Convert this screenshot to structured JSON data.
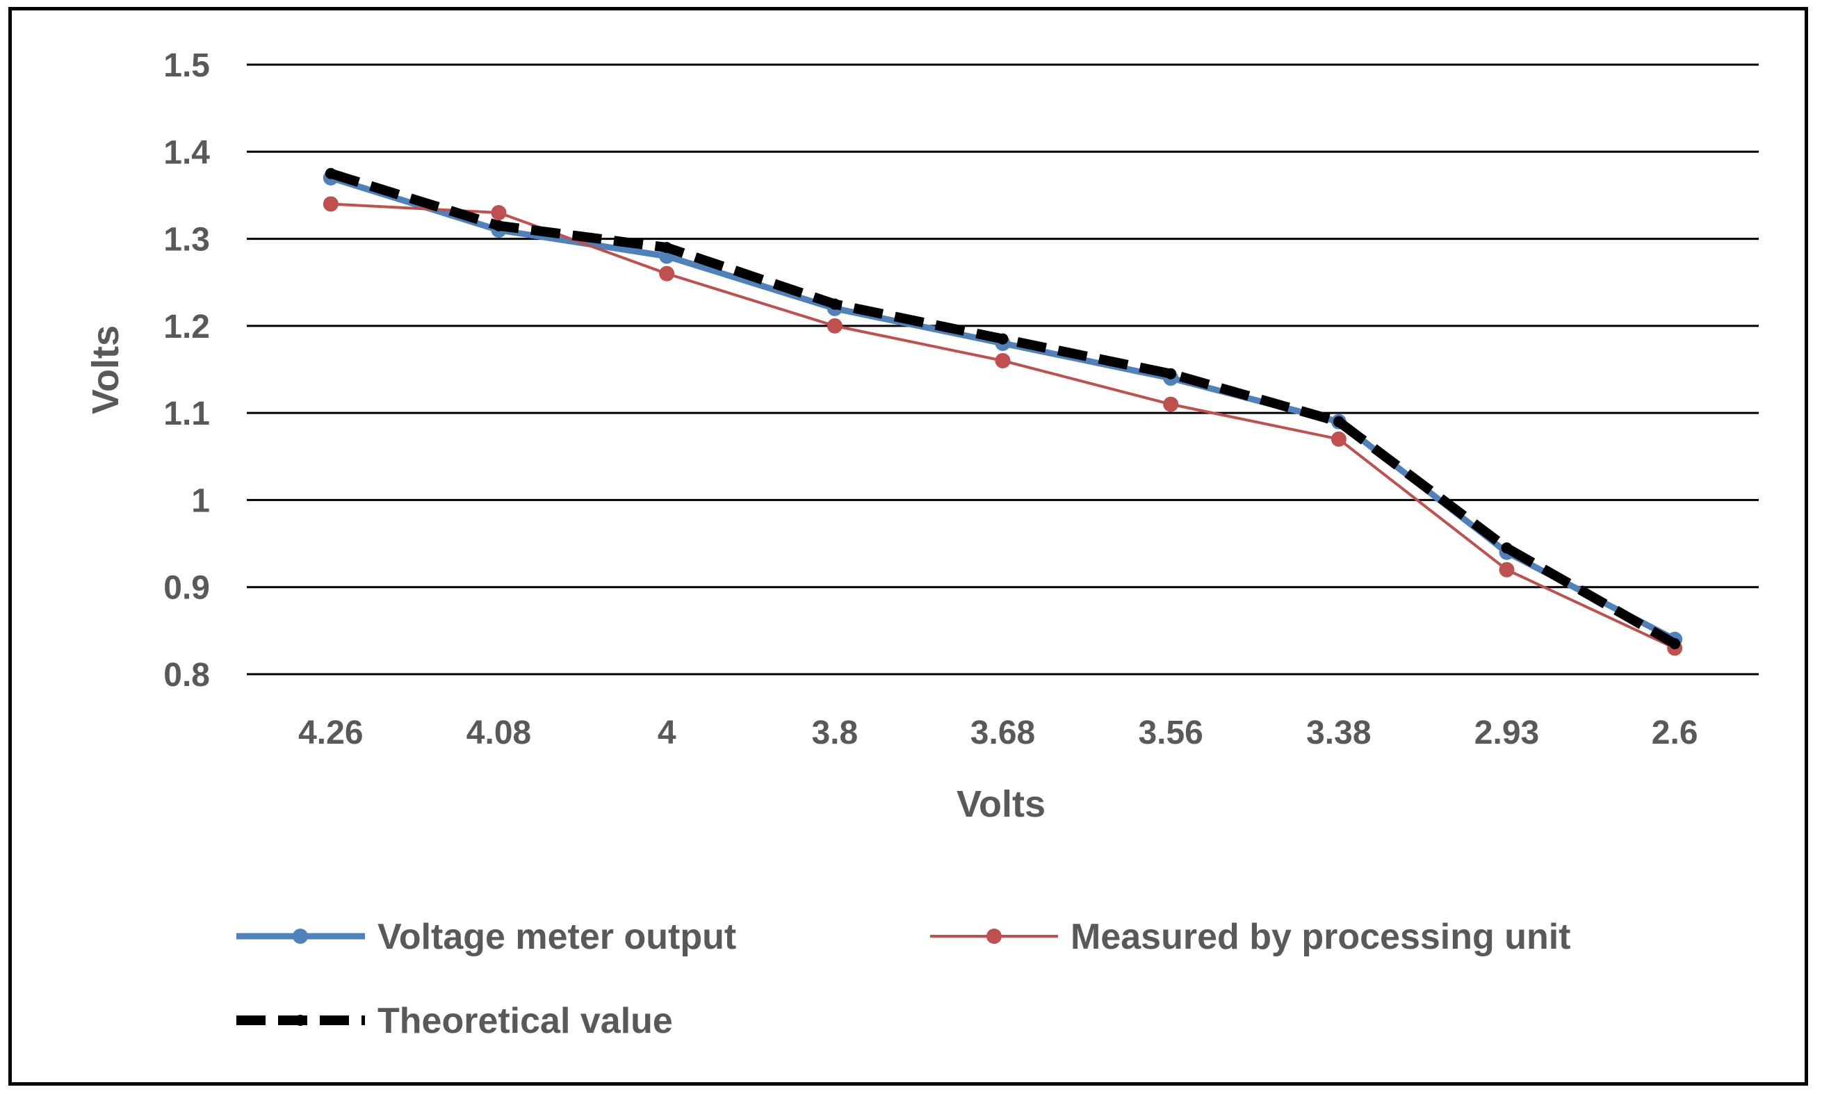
{
  "chart_data": {
    "type": "line",
    "title": "",
    "xlabel": "Volts",
    "ylabel": "Volts",
    "categories": [
      "4.26",
      "4.08",
      "4",
      "3.8",
      "3.68",
      "3.56",
      "3.38",
      "2.93",
      "2.6"
    ],
    "ylim": [
      0.8,
      1.5
    ],
    "yticks": [
      "0.8",
      "0.9",
      "1",
      "1.1",
      "1.2",
      "1.3",
      "1.4",
      "1.5"
    ],
    "grid": true,
    "legend_position": "bottom",
    "series": [
      {
        "name": "Voltage meter output",
        "color": "#4f81bd",
        "values": [
          1.37,
          1.31,
          1.28,
          1.22,
          1.18,
          1.14,
          1.09,
          0.94,
          0.84
        ]
      },
      {
        "name": "Measured by processing unit",
        "color": "#c0504d",
        "values": [
          1.34,
          1.33,
          1.26,
          1.2,
          1.16,
          1.11,
          1.07,
          0.92,
          0.83
        ]
      },
      {
        "name": "Theoretical value",
        "color": "#000000",
        "values": [
          1.375,
          1.315,
          1.29,
          1.225,
          1.185,
          1.145,
          1.09,
          0.945,
          0.835
        ]
      }
    ]
  }
}
